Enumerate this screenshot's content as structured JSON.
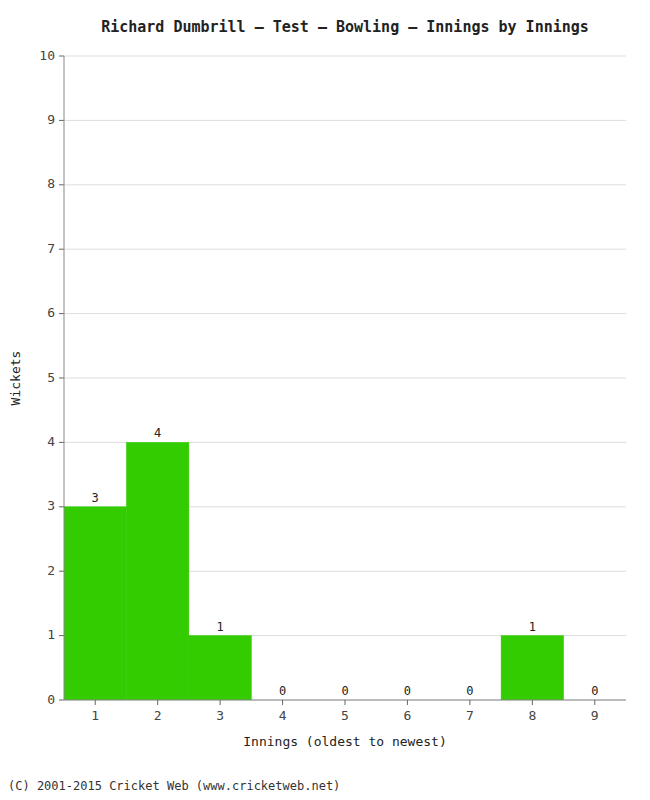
{
  "chart_data": {
    "type": "bar",
    "title": "Richard Dumbrill – Test – Bowling – Innings by Innings",
    "x_label": "Innings (oldest to newest)",
    "y_label": "Wickets",
    "x": [
      1,
      2,
      3,
      4,
      5,
      6,
      7,
      8,
      9
    ],
    "values": [
      3,
      4,
      1,
      0,
      0,
      0,
      0,
      1,
      0
    ],
    "color": "#33cc00",
    "xlim": [
      0.5,
      9.5
    ],
    "xticks": [
      1,
      2,
      3,
      4,
      5,
      6,
      7,
      8,
      9
    ],
    "ylim": [
      0,
      10
    ],
    "yticks": [
      0,
      1,
      2,
      3,
      4,
      5,
      6,
      7,
      8,
      9,
      10
    ],
    "grid": true,
    "data_labels": true,
    "annotations": [
      "(C) 2001-2015 Cricket Web (www.cricketweb.net)"
    ]
  }
}
